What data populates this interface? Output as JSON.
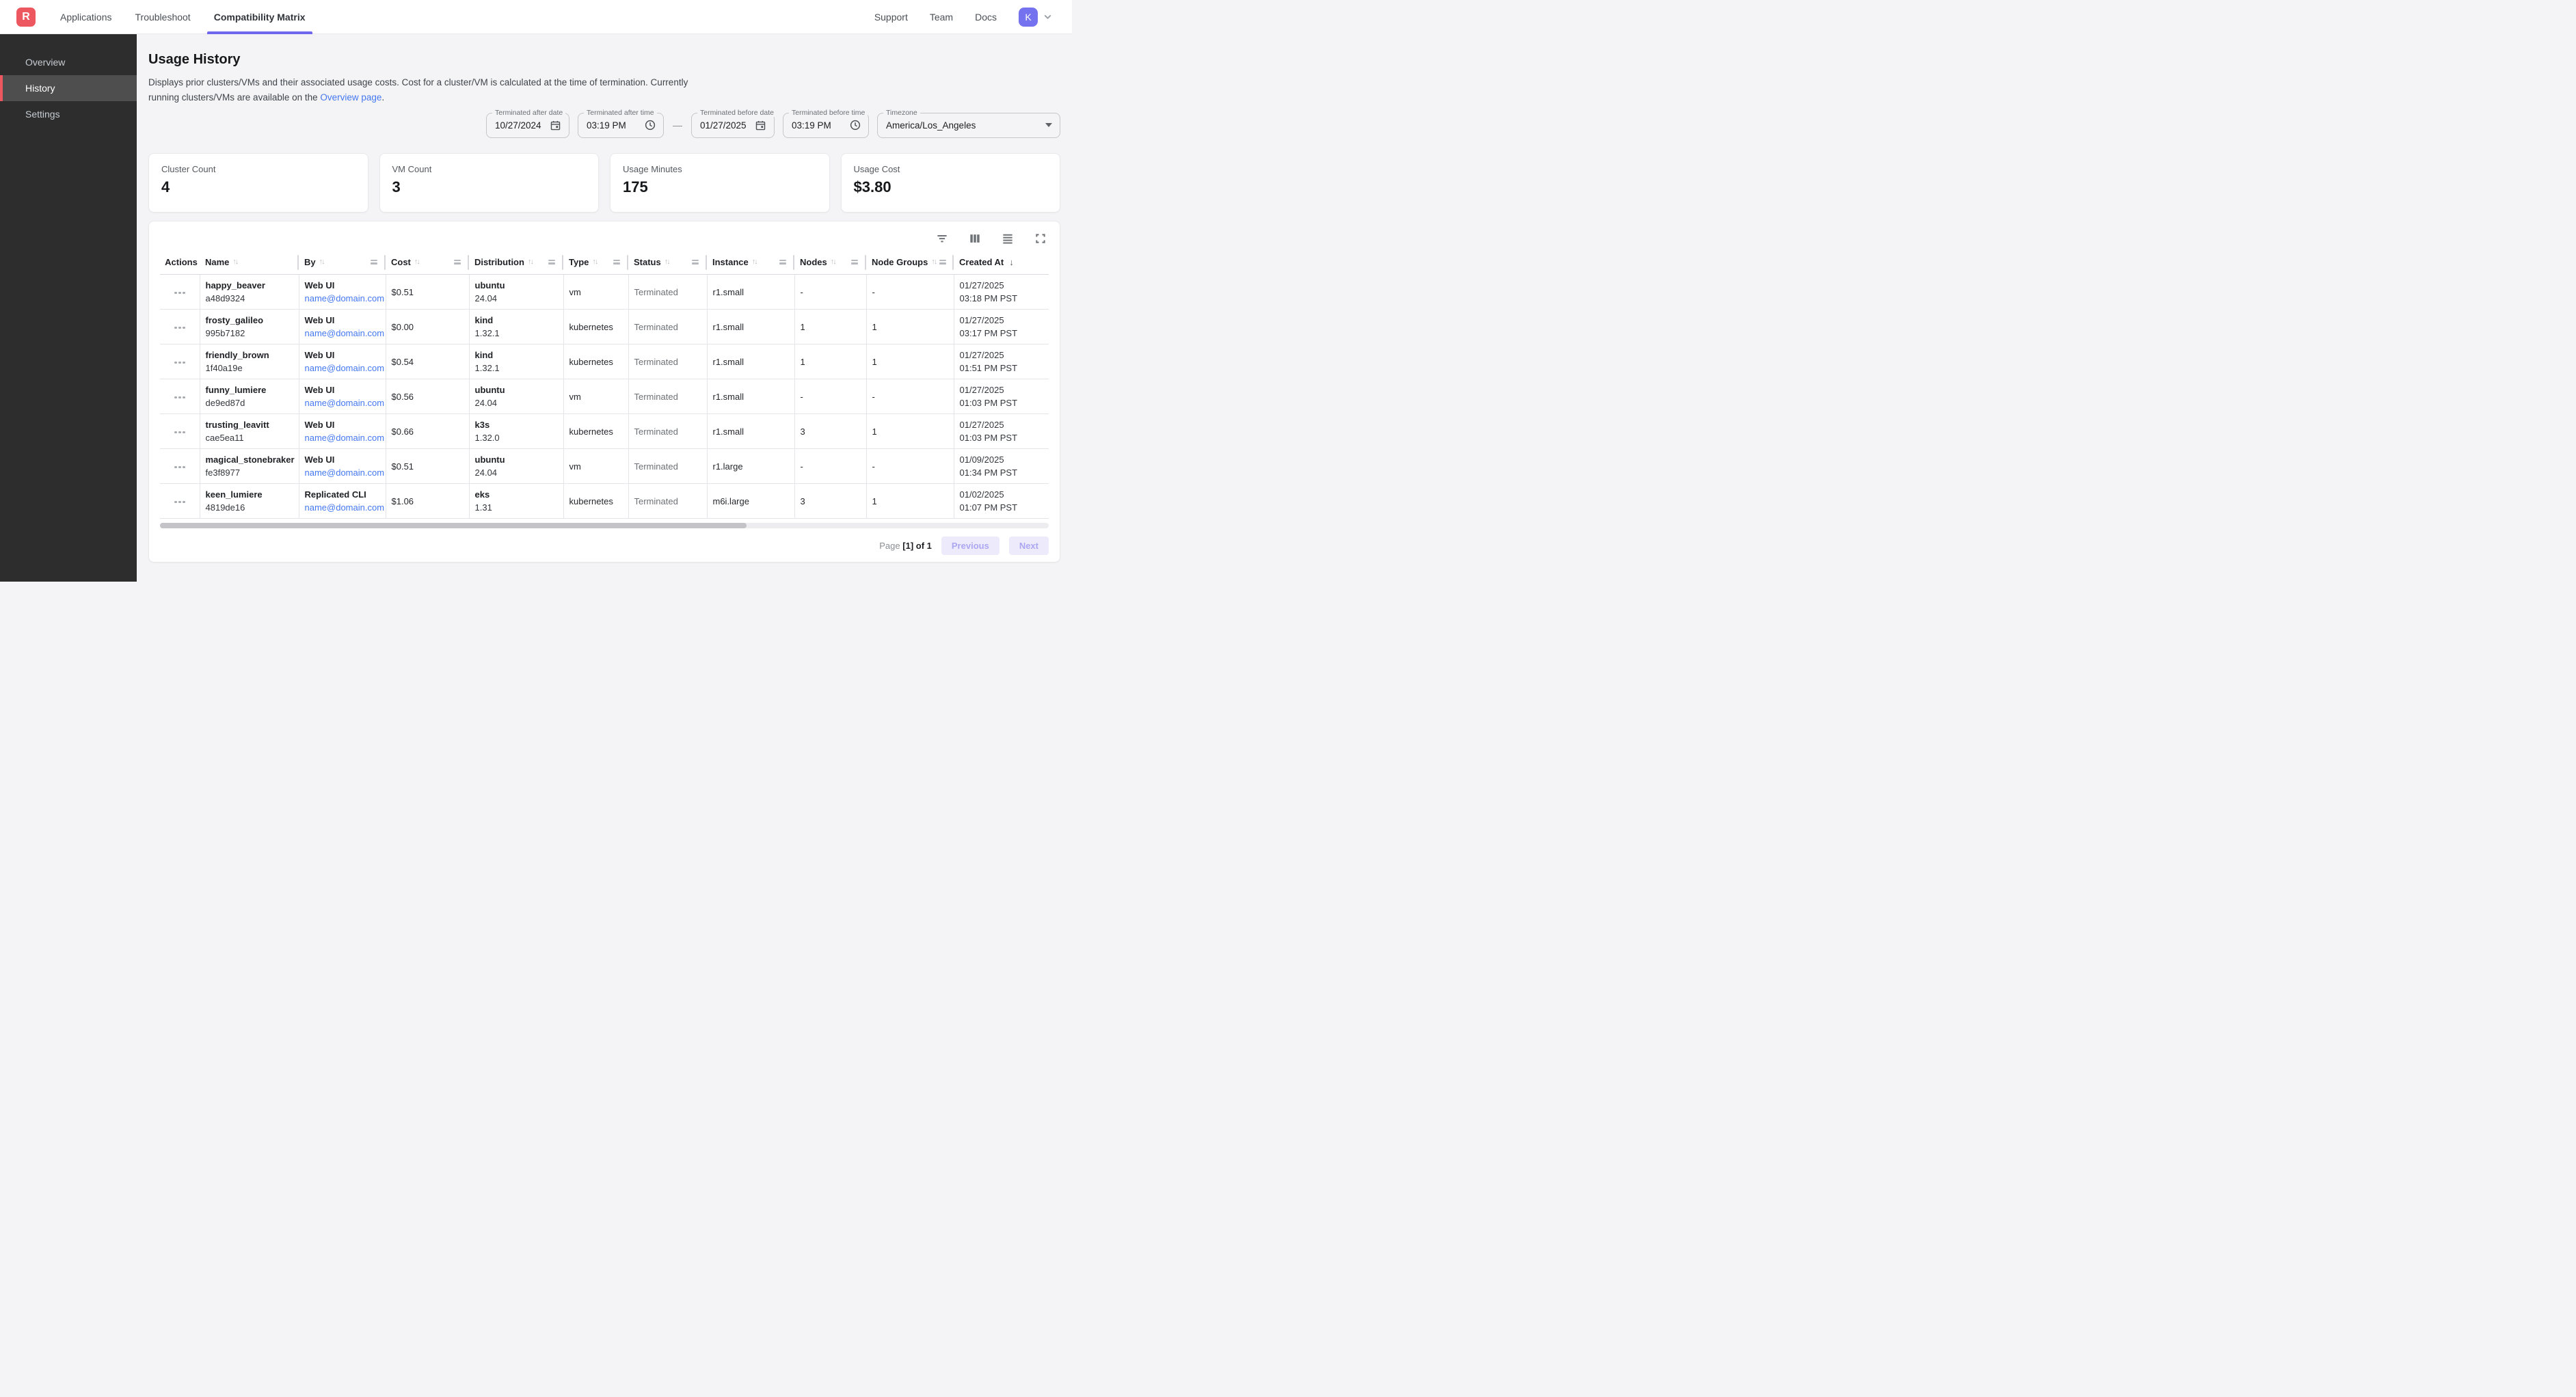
{
  "colors": {
    "accent_red": "#ec5760",
    "accent_indigo": "#6d68ee",
    "avatar_indigo": "#7472ef",
    "link_blue": "#4478f2",
    "sidebar_dark": "#2d2d2d"
  },
  "nav": {
    "logo_letter": "R",
    "tabs": [
      {
        "label": "Applications",
        "active": false
      },
      {
        "label": "Troubleshoot",
        "active": false
      },
      {
        "label": "Compatibility Matrix",
        "active": true
      }
    ],
    "links": [
      {
        "label": "Support"
      },
      {
        "label": "Team"
      },
      {
        "label": "Docs"
      }
    ],
    "avatar_initial": "K"
  },
  "sidebar": {
    "items": [
      {
        "label": "Overview",
        "active": false
      },
      {
        "label": "History",
        "active": true
      },
      {
        "label": "Settings",
        "active": false
      }
    ]
  },
  "page": {
    "title": "Usage History",
    "description_before_link": "Displays prior clusters/VMs and their associated usage costs. Cost for a cluster/VM is calculated at the time of termination. Currently running clusters/VMs are available on the ",
    "overview_link_label": "Overview page",
    "description_after_link": "."
  },
  "filters": {
    "terminated_after_date": {
      "label": "Terminated after date",
      "value": "10/27/2024"
    },
    "terminated_after_time": {
      "label": "Terminated after time",
      "value": "03:19 PM"
    },
    "range_separator": "—",
    "terminated_before_date": {
      "label": "Terminated before date",
      "value": "01/27/2025"
    },
    "terminated_before_time": {
      "label": "Terminated before time",
      "value": "03:19 PM"
    },
    "timezone": {
      "label": "Timezone",
      "value": "America/Los_Angeles"
    }
  },
  "stats": [
    {
      "label": "Cluster Count",
      "value": "4"
    },
    {
      "label": "VM Count",
      "value": "3"
    },
    {
      "label": "Usage Minutes",
      "value": "175"
    },
    {
      "label": "Usage Cost",
      "value": "$3.80"
    }
  ],
  "table": {
    "columns": [
      {
        "label": "Actions",
        "sort": "none",
        "menu_icon": false,
        "separator": false
      },
      {
        "label": "Name",
        "sort": "updown",
        "menu_icon": false,
        "separator": true
      },
      {
        "label": "By",
        "sort": "updown",
        "menu_icon": true,
        "separator": true
      },
      {
        "label": "Cost",
        "sort": "updown",
        "menu_icon": true,
        "separator": true
      },
      {
        "label": "Distribution",
        "sort": "updown",
        "menu_icon": true,
        "separator": true
      },
      {
        "label": "Type",
        "sort": "updown",
        "menu_icon": true,
        "separator": true
      },
      {
        "label": "Status",
        "sort": "updown",
        "menu_icon": true,
        "separator": true
      },
      {
        "label": "Instance",
        "sort": "updown",
        "menu_icon": true,
        "separator": true
      },
      {
        "label": "Nodes",
        "sort": "updown",
        "menu_icon": true,
        "separator": true
      },
      {
        "label": "Node Groups",
        "sort": "updown",
        "menu_icon": true,
        "separator": true
      },
      {
        "label": "Created At",
        "sort": "desc",
        "menu_icon": false,
        "separator": false
      }
    ],
    "rows": [
      {
        "name": "happy_beaver",
        "id": "a48d9324",
        "by": "Web UI",
        "by_email": "name@domain.com",
        "cost": "$0.51",
        "distribution": "ubuntu",
        "version": "24.04",
        "type": "vm",
        "status": "Terminated",
        "instance": "r1.small",
        "nodes": "-",
        "node_groups": "-",
        "created_date": "01/27/2025",
        "created_time": "03:18 PM PST"
      },
      {
        "name": "frosty_galileo",
        "id": "995b7182",
        "by": "Web UI",
        "by_email": "name@domain.com",
        "cost": "$0.00",
        "distribution": "kind",
        "version": "1.32.1",
        "type": "kubernetes",
        "status": "Terminated",
        "instance": "r1.small",
        "nodes": "1",
        "node_groups": "1",
        "created_date": "01/27/2025",
        "created_time": "03:17 PM PST"
      },
      {
        "name": "friendly_brown",
        "id": "1f40a19e",
        "by": "Web UI",
        "by_email": "name@domain.com",
        "cost": "$0.54",
        "distribution": "kind",
        "version": "1.32.1",
        "type": "kubernetes",
        "status": "Terminated",
        "instance": "r1.small",
        "nodes": "1",
        "node_groups": "1",
        "created_date": "01/27/2025",
        "created_time": "01:51 PM PST"
      },
      {
        "name": "funny_lumiere",
        "id": "de9ed87d",
        "by": "Web UI",
        "by_email": "name@domain.com",
        "cost": "$0.56",
        "distribution": "ubuntu",
        "version": "24.04",
        "type": "vm",
        "status": "Terminated",
        "instance": "r1.small",
        "nodes": "-",
        "node_groups": "-",
        "created_date": "01/27/2025",
        "created_time": "01:03 PM PST"
      },
      {
        "name": "trusting_leavitt",
        "id": "cae5ea11",
        "by": "Web UI",
        "by_email": "name@domain.com",
        "cost": "$0.66",
        "distribution": "k3s",
        "version": "1.32.0",
        "type": "kubernetes",
        "status": "Terminated",
        "instance": "r1.small",
        "nodes": "3",
        "node_groups": "1",
        "created_date": "01/27/2025",
        "created_time": "01:03 PM PST"
      },
      {
        "name": "magical_stonebraker",
        "id": "fe3f8977",
        "by": "Web UI",
        "by_email": "name@domain.com",
        "cost": "$0.51",
        "distribution": "ubuntu",
        "version": "24.04",
        "type": "vm",
        "status": "Terminated",
        "instance": "r1.large",
        "nodes": "-",
        "node_groups": "-",
        "created_date": "01/09/2025",
        "created_time": "01:34 PM PST"
      },
      {
        "name": "keen_lumiere",
        "id": "4819de16",
        "by": "Replicated CLI",
        "by_email": "name@domain.com",
        "cost": "$1.06",
        "distribution": "eks",
        "version": "1.31",
        "type": "kubernetes",
        "status": "Terminated",
        "instance": "m6i.large",
        "nodes": "3",
        "node_groups": "1",
        "created_date": "01/02/2025",
        "created_time": "01:07 PM PST"
      }
    ]
  },
  "pagination": {
    "page_word": "Page",
    "page_value": "[1] of 1",
    "previous_label": "Previous",
    "next_label": "Next"
  }
}
